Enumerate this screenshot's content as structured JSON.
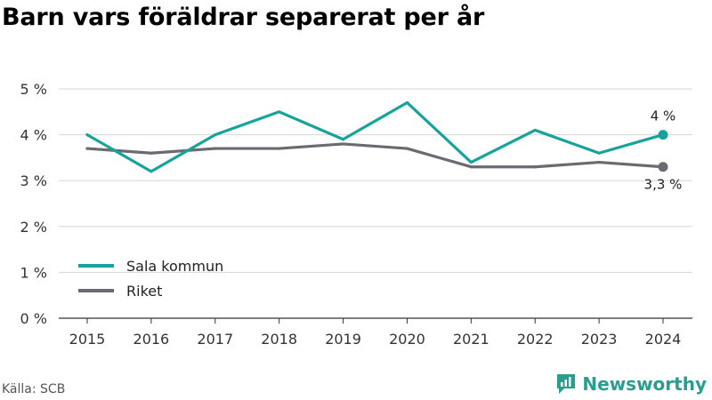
{
  "title": "Barn vars föräldrar separerat per år",
  "source": "Källa: SCB",
  "brand": {
    "name": "Newsworthy",
    "icon": "newsworthy-logo-icon",
    "color": "#2a9d8f"
  },
  "chart_data": {
    "type": "line",
    "title": "Barn vars föräldrar separerat per år",
    "xlabel": "",
    "ylabel": "",
    "x": [
      "2015",
      "2016",
      "2017",
      "2018",
      "2019",
      "2020",
      "2021",
      "2022",
      "2023",
      "2024"
    ],
    "ylim": [
      0,
      5
    ],
    "y_ticks": [
      "0 %",
      "1 %",
      "2 %",
      "3 %",
      "4 %",
      "5 %"
    ],
    "grid": true,
    "legend": "bottom-left",
    "series": [
      {
        "name": "Sala kommun",
        "color": "#17a39a",
        "values": [
          4.0,
          3.2,
          4.0,
          4.5,
          3.9,
          4.7,
          3.4,
          4.1,
          3.6,
          4.0
        ],
        "end_label": "4 %"
      },
      {
        "name": "Riket",
        "color": "#6b6a70",
        "values": [
          3.7,
          3.6,
          3.7,
          3.7,
          3.8,
          3.7,
          3.3,
          3.3,
          3.4,
          3.3
        ],
        "end_label": "3,3 %"
      }
    ]
  }
}
